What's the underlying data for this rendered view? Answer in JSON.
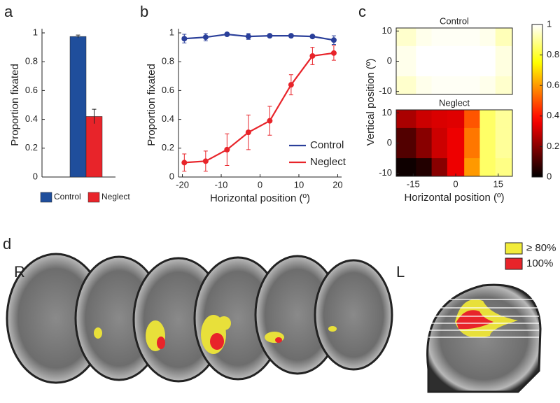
{
  "chart_data": [
    {
      "type": "bar",
      "panel_label": "a",
      "ylabel": "Proportion fixated",
      "categories": [
        null
      ],
      "series": [
        {
          "name": "Control",
          "color": "#1f4e9c",
          "values": [
            0.975
          ],
          "errors": [
            0.01
          ]
        },
        {
          "name": "Neglect",
          "color": "#e8242a",
          "values": [
            0.42
          ],
          "errors": [
            0.05
          ]
        }
      ],
      "ylim": [
        0,
        1
      ],
      "yticks": [
        0,
        0.2,
        0.4,
        0.6,
        0.8,
        1
      ],
      "legend": "bottom"
    },
    {
      "type": "line",
      "panel_label": "b",
      "xlabel": "Horizontal position (º)",
      "ylabel": "Proportion fixated",
      "x": [
        -19.5,
        -14,
        -8.5,
        -3,
        2.5,
        8,
        13.5,
        19
      ],
      "series": [
        {
          "name": "Control",
          "color": "#2a3f9a",
          "values": [
            0.96,
            0.97,
            0.99,
            0.975,
            0.98,
            0.98,
            0.975,
            0.95
          ],
          "errors": [
            0.03,
            0.025,
            0.01,
            0.02,
            0.01,
            0.01,
            0.01,
            0.03
          ]
        },
        {
          "name": "Neglect",
          "color": "#e8242a",
          "values": [
            0.1,
            0.11,
            0.19,
            0.31,
            0.39,
            0.64,
            0.84,
            0.86
          ],
          "errors": [
            0.06,
            0.07,
            0.11,
            0.12,
            0.1,
            0.07,
            0.06,
            0.05
          ]
        }
      ],
      "xlim": [
        -21,
        21
      ],
      "xticks": [
        -20,
        -10,
        0,
        10,
        20
      ],
      "ylim": [
        0,
        1
      ],
      "yticks": [
        0,
        0.2,
        0.4,
        0.6,
        0.8,
        1
      ],
      "legend": "lower right"
    },
    {
      "type": "heatmap",
      "panel_label": "c",
      "xlabel": "Horizontal position (º)",
      "ylabel": "Vertical position (º)",
      "colormap": "hot",
      "x": [
        -17,
        -11,
        -6,
        0,
        6,
        11,
        17
      ],
      "y": [
        10,
        0,
        -10
      ],
      "panels": [
        {
          "title": "Control",
          "values": [
            [
              0.95,
              0.98,
              0.99,
              0.99,
              0.99,
              0.98,
              0.93
            ],
            [
              0.98,
              1,
              1,
              1,
              1,
              1,
              0.97
            ],
            [
              0.95,
              0.98,
              0.99,
              0.99,
              0.99,
              0.98,
              0.95
            ]
          ]
        },
        {
          "title": "Neglect",
          "values": [
            [
              0.25,
              0.3,
              0.32,
              0.33,
              0.5,
              0.85,
              0.9
            ],
            [
              0.12,
              0.2,
              0.3,
              0.35,
              0.55,
              0.85,
              0.9
            ],
            [
              0.02,
              0.05,
              0.2,
              0.35,
              0.6,
              0.85,
              0.88
            ]
          ]
        }
      ],
      "xlim": [
        -21,
        20
      ],
      "xticks": [
        -15,
        0,
        15
      ],
      "ylim": [
        -11,
        11
      ],
      "yticks": [
        -10,
        0,
        10
      ],
      "clim": [
        0,
        1
      ],
      "cticks": [
        0,
        0.2,
        0.4,
        0.6,
        0.8,
        1
      ]
    }
  ],
  "brain_figure": {
    "panel_label": "d",
    "left_side": "R",
    "right_side": "L",
    "legend": [
      {
        "label": "≥ 80%",
        "color": "#f2ec3a"
      },
      {
        "label": "100%",
        "color": "#e8242a"
      }
    ]
  }
}
